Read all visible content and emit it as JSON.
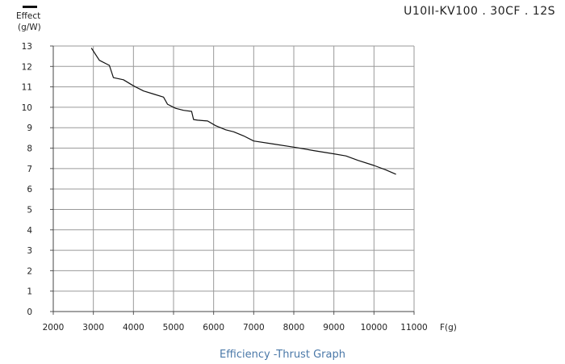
{
  "header": {
    "model": "U10II-KV100 . 30CF . 12S"
  },
  "caption": "Efficiency -Thrust Graph",
  "chart_data": {
    "type": "line",
    "title": "Efficiency -Thrust Graph",
    "xlabel": "F(g)",
    "ylabel_lines": [
      "Effect",
      "(g/W)"
    ],
    "xlim": [
      2000,
      11000
    ],
    "ylim": [
      0,
      13
    ],
    "xticks": [
      2000,
      3000,
      4000,
      5000,
      6000,
      7000,
      8000,
      9000,
      10000,
      11000
    ],
    "yticks": [
      0,
      1,
      2,
      3,
      4,
      5,
      6,
      7,
      8,
      9,
      10,
      11,
      12,
      13
    ],
    "grid": true,
    "legend": "top-left",
    "series": [
      {
        "color": "#111111",
        "points": [
          [
            2950,
            12.9
          ],
          [
            3150,
            12.3
          ],
          [
            3400,
            12.05
          ],
          [
            3500,
            11.45
          ],
          [
            3750,
            11.35
          ],
          [
            4000,
            11.05
          ],
          [
            4250,
            10.8
          ],
          [
            4500,
            10.65
          ],
          [
            4750,
            10.5
          ],
          [
            4850,
            10.15
          ],
          [
            5050,
            9.95
          ],
          [
            5250,
            9.85
          ],
          [
            5450,
            9.8
          ],
          [
            5500,
            9.4
          ],
          [
            5600,
            9.37
          ],
          [
            5850,
            9.33
          ],
          [
            6050,
            9.1
          ],
          [
            6300,
            8.9
          ],
          [
            6500,
            8.8
          ],
          [
            6750,
            8.6
          ],
          [
            7000,
            8.35
          ],
          [
            7500,
            8.2
          ],
          [
            8000,
            8.05
          ],
          [
            8500,
            7.88
          ],
          [
            9000,
            7.72
          ],
          [
            9300,
            7.62
          ],
          [
            9600,
            7.4
          ],
          [
            10000,
            7.15
          ],
          [
            10300,
            6.93
          ],
          [
            10550,
            6.72
          ]
        ]
      }
    ]
  }
}
